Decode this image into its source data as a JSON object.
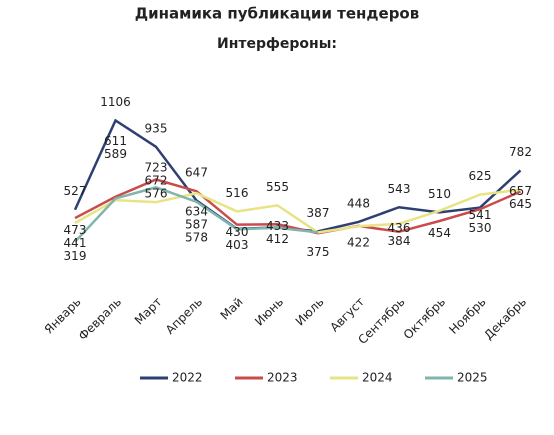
{
  "chart_data": {
    "type": "line",
    "title": "Динамика публикации тендеров",
    "subtitle": "Интерфероны:",
    "categories": [
      "Январь",
      "Февраль",
      "Март",
      "Апрель",
      "Май",
      "Июнь",
      "Июль",
      "Август",
      "Сентябрь",
      "Октябрь",
      "Ноябрь",
      "Декабрь"
    ],
    "ylim": [
      0,
      1200
    ],
    "series": [
      {
        "name": "2022",
        "color": "#2e3f72",
        "values": [
          527,
          1106,
          935,
          587,
          403,
          412,
          387,
          448,
          543,
          510,
          541,
          782
        ],
        "value_labels": [
          "527",
          "1106",
          "935",
          "587",
          "403",
          "412",
          "387",
          "448",
          "543",
          "510",
          "541",
          "782"
        ]
      },
      {
        "name": "2023",
        "color": "#c94b4b",
        "values": [
          473,
          611,
          723,
          647,
          430,
          433,
          375,
          422,
          384,
          454,
          530,
          645
        ],
        "value_labels": [
          "473",
          "611",
          "723",
          "647",
          "430",
          "433",
          "375",
          "422",
          "384",
          "454",
          "530",
          "645"
        ]
      },
      {
        "name": "2024",
        "color": "#e8e484",
        "values": [
          441,
          589,
          576,
          634,
          516,
          555,
          380,
          420,
          436,
          520,
          625,
          657
        ],
        "value_labels": [
          "441",
          "589",
          "576",
          "634",
          "516",
          "555",
          null,
          null,
          "436",
          null,
          "625",
          "657"
        ]
      },
      {
        "name": "2025",
        "color": "#7fb5ad",
        "values": [
          319,
          600,
          672,
          578,
          400,
          410,
          380,
          null,
          null,
          null,
          null,
          null
        ],
        "value_labels": [
          "319",
          null,
          "672",
          "578",
          null,
          null,
          null,
          null,
          null,
          null,
          null,
          null
        ]
      }
    ]
  }
}
